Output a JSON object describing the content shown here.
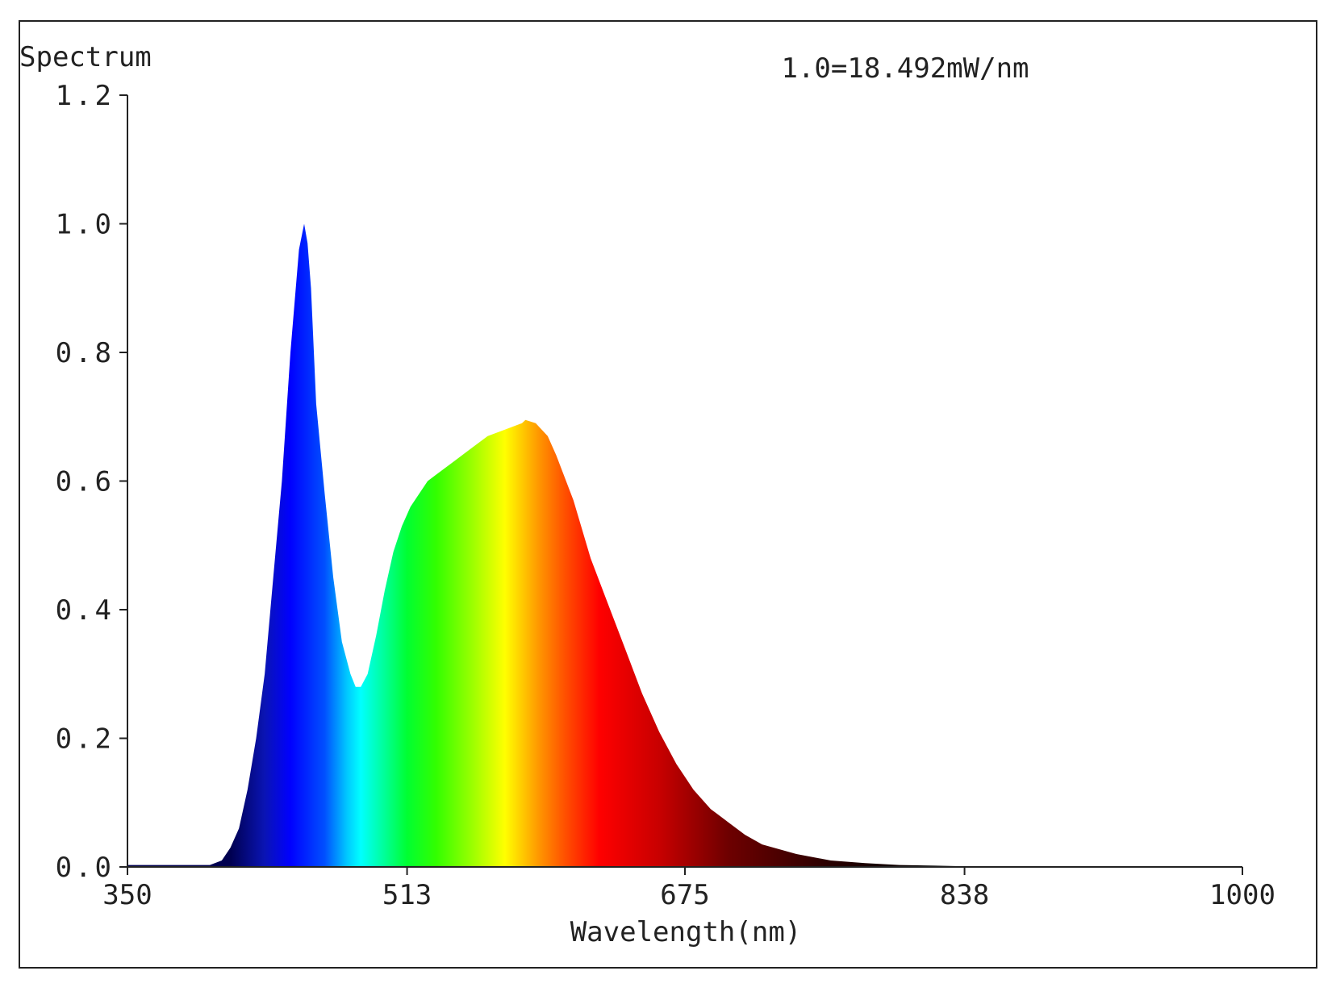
{
  "chart_data": {
    "type": "area",
    "title": "Spectrum",
    "annotation": "1.0=18.492mW/nm",
    "xlabel": "Wavelength(nm)",
    "ylabel": "",
    "xlim": [
      350,
      1000
    ],
    "ylim": [
      0,
      1.2
    ],
    "x_ticks": [
      350,
      513,
      675,
      838,
      1000
    ],
    "x_tick_labels": [
      "350",
      "513",
      "675",
      "838",
      "1000"
    ],
    "y_ticks": [
      0.0,
      0.2,
      0.4,
      0.6,
      0.8,
      1.0,
      1.2
    ],
    "y_tick_labels": [
      "0.0",
      "0.2",
      "0.4",
      "0.6",
      "0.8",
      "1.0",
      "1.2"
    ],
    "grid": false,
    "fill": "visible-spectrum gradient",
    "series": [
      {
        "x": [
          350,
          380,
          398,
          405,
          410,
          415,
          420,
          425,
          430,
          435,
          440,
          445,
          450,
          453,
          455,
          457,
          460,
          465,
          470,
          475,
          480,
          483,
          486,
          490,
          495,
          500,
          505,
          510,
          515,
          520,
          525,
          530,
          540,
          550,
          560,
          570,
          580,
          582,
          588,
          595,
          600,
          610,
          620,
          630,
          640,
          650,
          660,
          670,
          680,
          690,
          700,
          710,
          720,
          740,
          760,
          780,
          800,
          820,
          840,
          870,
          900,
          950,
          1000
        ],
        "y": [
          0.003,
          0.003,
          0.003,
          0.01,
          0.03,
          0.06,
          0.12,
          0.2,
          0.3,
          0.45,
          0.6,
          0.8,
          0.96,
          1.0,
          0.97,
          0.9,
          0.72,
          0.58,
          0.45,
          0.35,
          0.3,
          0.28,
          0.28,
          0.3,
          0.36,
          0.43,
          0.49,
          0.53,
          0.56,
          0.58,
          0.6,
          0.61,
          0.63,
          0.65,
          0.67,
          0.68,
          0.69,
          0.695,
          0.69,
          0.67,
          0.64,
          0.57,
          0.48,
          0.41,
          0.34,
          0.27,
          0.21,
          0.16,
          0.12,
          0.09,
          0.07,
          0.05,
          0.035,
          0.02,
          0.01,
          0.006,
          0.003,
          0.002,
          0.001,
          0.001,
          0.0005,
          0.0,
          0.0
        ]
      }
    ],
    "colors": {
      "axis": "#222222",
      "frame": "#222222",
      "background": "#ffffff"
    },
    "gradient_stops": [
      {
        "wl": 410,
        "color": "#000050"
      },
      {
        "wl": 430,
        "color": "#0a14b4"
      },
      {
        "wl": 445,
        "color": "#0000ff"
      },
      {
        "wl": 465,
        "color": "#0050ff"
      },
      {
        "wl": 478,
        "color": "#00c8ff"
      },
      {
        "wl": 486,
        "color": "#00ffff"
      },
      {
        "wl": 500,
        "color": "#00ff96"
      },
      {
        "wl": 513,
        "color": "#00ff32"
      },
      {
        "wl": 530,
        "color": "#32ff00"
      },
      {
        "wl": 550,
        "color": "#96ff00"
      },
      {
        "wl": 570,
        "color": "#ffff00"
      },
      {
        "wl": 590,
        "color": "#ff9600"
      },
      {
        "wl": 605,
        "color": "#ff5000"
      },
      {
        "wl": 625,
        "color": "#ff0000"
      },
      {
        "wl": 660,
        "color": "#c80000"
      },
      {
        "wl": 700,
        "color": "#6e0000"
      },
      {
        "wl": 760,
        "color": "#280000"
      },
      {
        "wl": 820,
        "color": "#000000"
      }
    ]
  }
}
